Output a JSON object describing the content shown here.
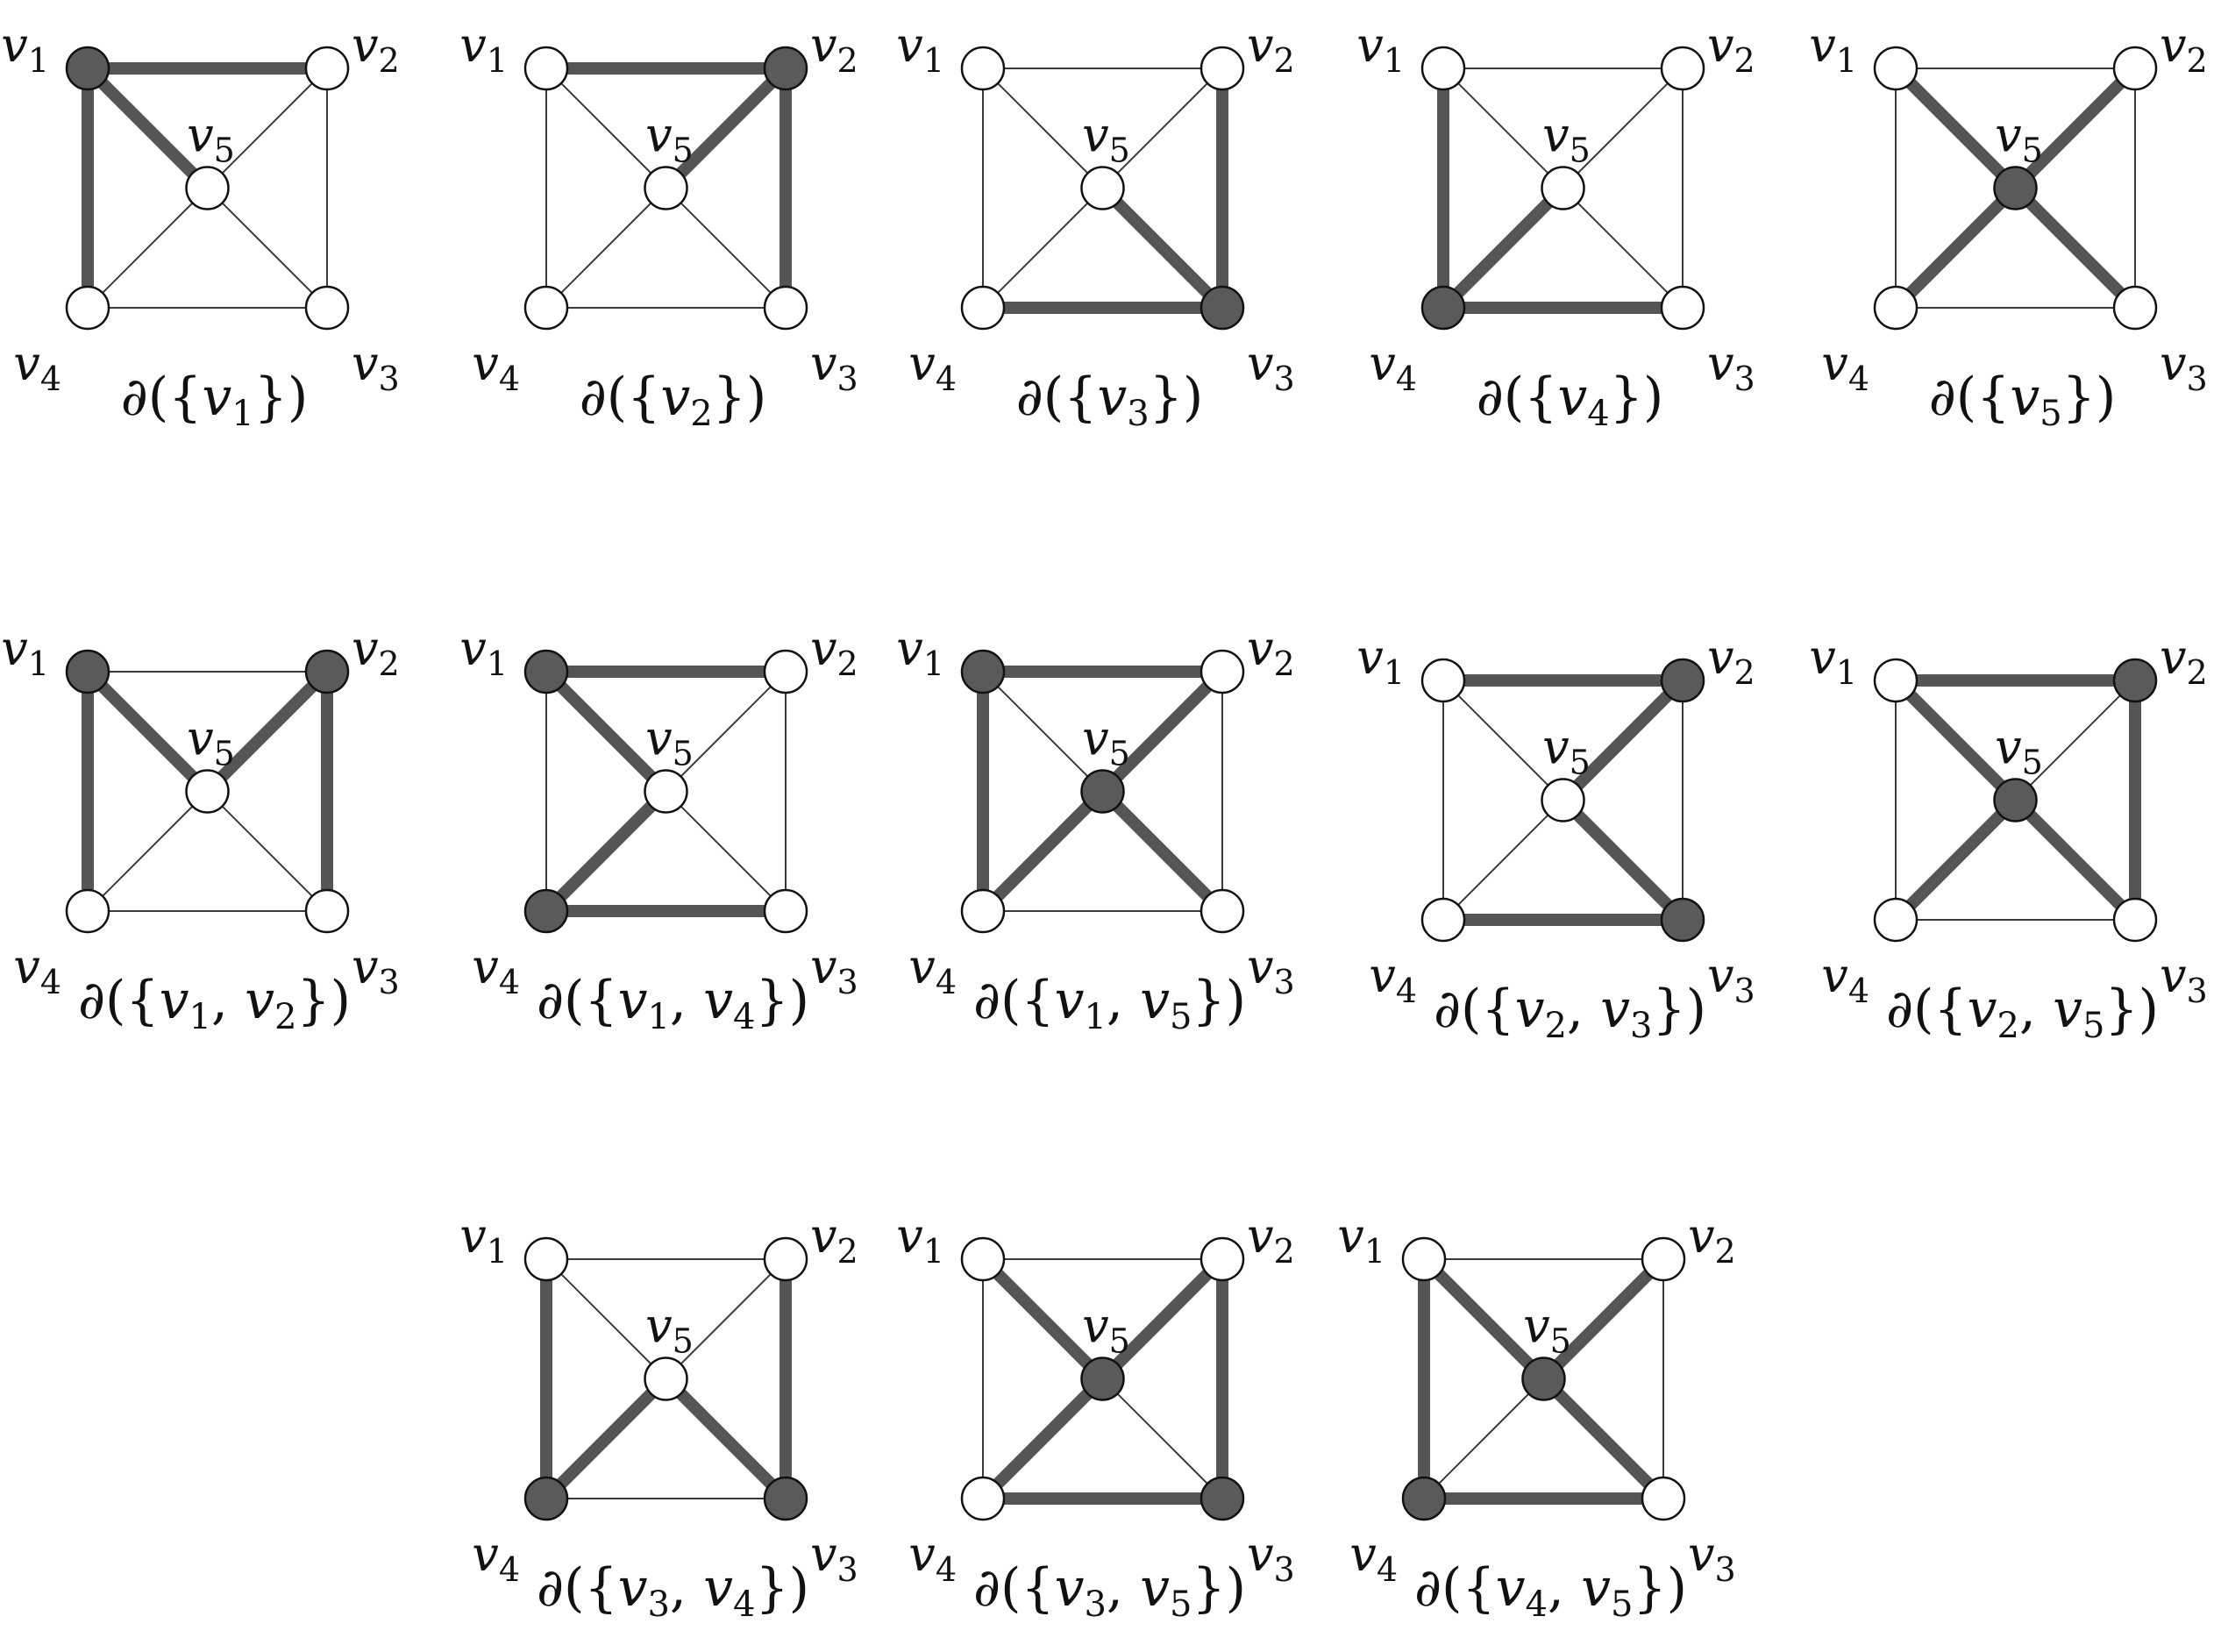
{
  "vertices": [
    {
      "id": "v1",
      "letter": "v",
      "sub": "1"
    },
    {
      "id": "v2",
      "letter": "v",
      "sub": "2"
    },
    {
      "id": "v3",
      "letter": "v",
      "sub": "3"
    },
    {
      "id": "v4",
      "letter": "v",
      "sub": "4"
    },
    {
      "id": "v5",
      "letter": "v",
      "sub": "5"
    }
  ],
  "edges": [
    [
      "v1",
      "v2"
    ],
    [
      "v2",
      "v3"
    ],
    [
      "v3",
      "v4"
    ],
    [
      "v4",
      "v1"
    ],
    [
      "v1",
      "v5"
    ],
    [
      "v2",
      "v5"
    ],
    [
      "v3",
      "v5"
    ],
    [
      "v4",
      "v5"
    ]
  ],
  "cut_prefix": "∂({",
  "cut_suffix": "})",
  "cut_separator": ", ",
  "colors": {
    "selected": "#5a5a5a",
    "unselected": "#ffffff",
    "cut_edge": "#555555",
    "edge": "#3a3a3a"
  },
  "panels": [
    {
      "set": [
        "v1"
      ]
    },
    {
      "set": [
        "v2"
      ]
    },
    {
      "set": [
        "v3"
      ]
    },
    {
      "set": [
        "v4"
      ]
    },
    {
      "set": [
        "v5"
      ]
    },
    {
      "set": [
        "v1",
        "v2"
      ]
    },
    {
      "set": [
        "v1",
        "v4"
      ]
    },
    {
      "set": [
        "v1",
        "v5"
      ]
    },
    {
      "set": [
        "v2",
        "v3"
      ]
    },
    {
      "set": [
        "v2",
        "v5"
      ]
    },
    {
      "set": [
        "v3",
        "v4"
      ]
    },
    {
      "set": [
        "v3",
        "v5"
      ]
    },
    {
      "set": [
        "v4",
        "v5"
      ]
    }
  ]
}
